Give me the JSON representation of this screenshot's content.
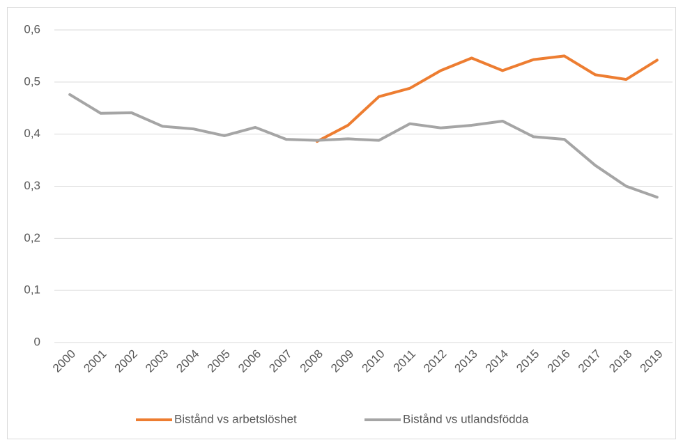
{
  "chart_data": {
    "type": "line",
    "categories": [
      "2000",
      "2001",
      "2002",
      "2003",
      "2004",
      "2005",
      "2006",
      "2007",
      "2008",
      "2009",
      "2010",
      "2011",
      "2012",
      "2013",
      "2014",
      "2015",
      "2016",
      "2017",
      "2018",
      "2019"
    ],
    "series": [
      {
        "name": "Bistånd vs arbetslöshet",
        "color": "#ed7d31",
        "values": [
          null,
          null,
          null,
          null,
          null,
          null,
          null,
          null,
          0.386,
          0.417,
          0.472,
          0.488,
          0.522,
          0.546,
          0.522,
          0.543,
          0.55,
          0.514,
          0.505,
          0.542
        ]
      },
      {
        "name": "Bistånd vs utlandsfödda",
        "color": "#a5a5a5",
        "values": [
          0.476,
          0.44,
          0.441,
          0.415,
          0.41,
          0.397,
          0.413,
          0.39,
          0.388,
          0.391,
          0.388,
          0.42,
          0.412,
          0.417,
          0.425,
          0.395,
          0.39,
          0.34,
          0.3,
          0.279
        ]
      }
    ],
    "ylim": [
      0,
      0.6
    ],
    "yticks": [
      0,
      {
        "value": 0.1,
        "label": "0,1"
      },
      {
        "value": 0.2,
        "label": "0,2"
      },
      {
        "value": 0.3,
        "label": "0,3"
      },
      {
        "value": 0.4,
        "label": "0,4"
      },
      {
        "value": 0.5,
        "label": "0,5"
      },
      {
        "value": 0.6,
        "label": "0,6"
      }
    ],
    "grid": true,
    "legend": "bottom"
  }
}
